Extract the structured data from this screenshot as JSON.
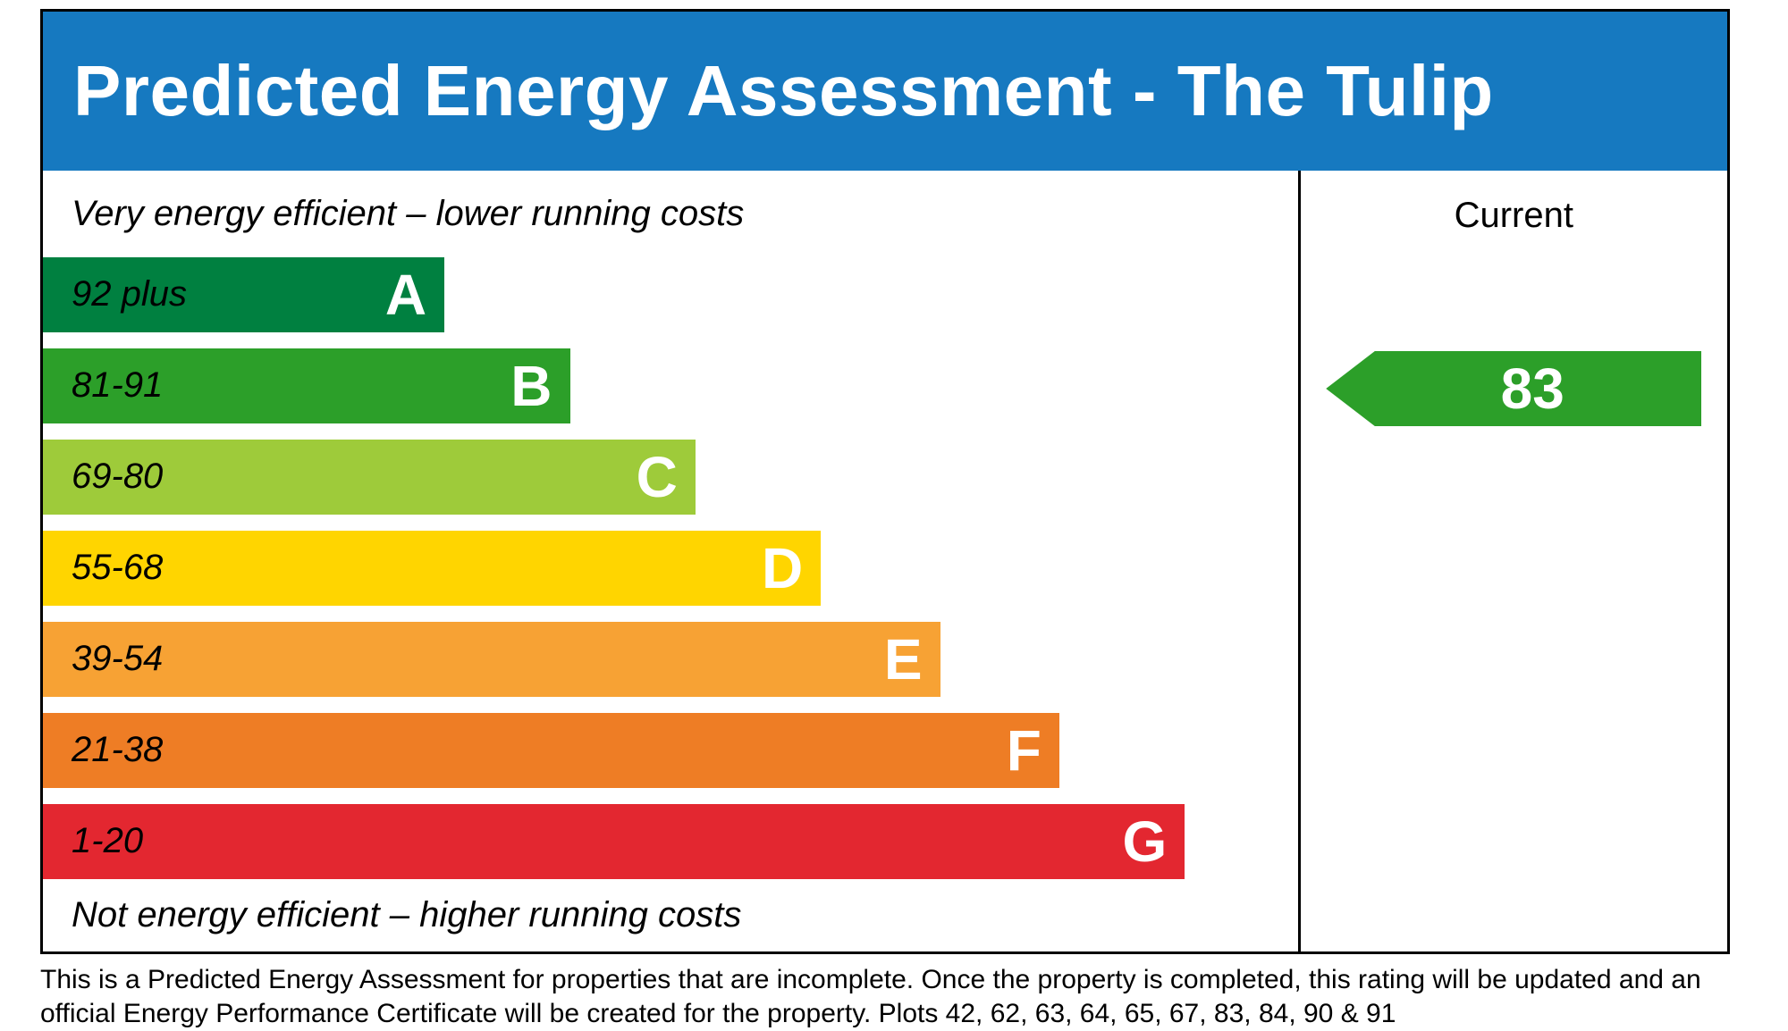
{
  "header": {
    "title": "Predicted Energy Assessment - The Tulip",
    "bg_color": "#1679c0"
  },
  "chart": {
    "top_caption": "Very energy efficient – lower running costs",
    "bottom_caption": "Not energy efficient – higher running costs",
    "column_header": "Current",
    "bands": [
      {
        "range": "92 plus",
        "letter": "A",
        "color": "#008040",
        "width_pct": 32
      },
      {
        "range": "81-91",
        "letter": "B",
        "color": "#2c9f29",
        "width_pct": 42
      },
      {
        "range": "69-80",
        "letter": "C",
        "color": "#9ecb3a",
        "width_pct": 52
      },
      {
        "range": "55-68",
        "letter": "D",
        "color": "#ffd500",
        "width_pct": 62
      },
      {
        "range": "39-54",
        "letter": "E",
        "color": "#f7a234",
        "width_pct": 71.5
      },
      {
        "range": "21-38",
        "letter": "F",
        "color": "#ee7d25",
        "width_pct": 81
      },
      {
        "range": "1-20",
        "letter": "G",
        "color": "#e32730",
        "width_pct": 91
      }
    ],
    "current": {
      "value": "83",
      "band_index": 1,
      "color": "#2c9f29"
    }
  },
  "footer": {
    "text": "This is a Predicted Energy Assessment for properties that are incomplete. Once the property is completed, this rating will be updated and an official Energy Performance Certificate will be created for the property. Plots 42, 62, 63, 64, 65, 67, 83, 84, 90 & 91"
  },
  "chart_data": {
    "type": "bar",
    "title": "Predicted Energy Assessment - The Tulip",
    "categories": [
      "A",
      "B",
      "C",
      "D",
      "E",
      "F",
      "G"
    ],
    "band_ranges": [
      "92 plus",
      "81-91",
      "69-80",
      "55-68",
      "39-54",
      "21-38",
      "1-20"
    ],
    "band_colors": [
      "#008040",
      "#2c9f29",
      "#9ecb3a",
      "#ffd500",
      "#f7a234",
      "#ee7d25",
      "#e32730"
    ],
    "bar_widths_pct": [
      32,
      42,
      52,
      62,
      71.5,
      81,
      91
    ],
    "series": [
      {
        "name": "Current",
        "values": [
          83
        ]
      }
    ],
    "current_rating": 83,
    "current_band": "B",
    "top_caption": "Very energy efficient – lower running costs",
    "bottom_caption": "Not energy efficient – higher running costs",
    "legend_position": "none",
    "grid": false
  }
}
